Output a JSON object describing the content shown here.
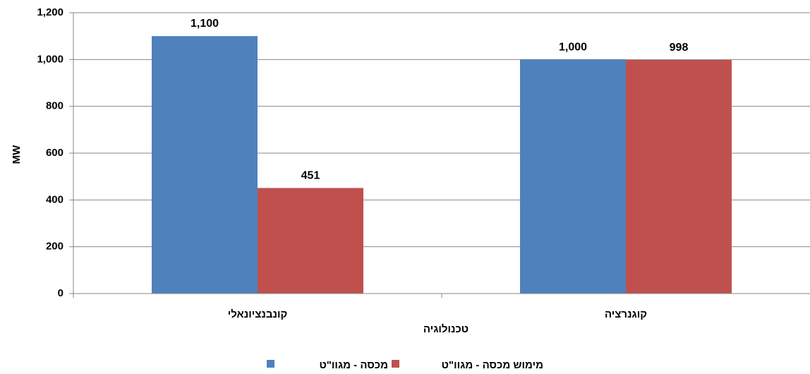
{
  "chart_data": {
    "type": "bar",
    "categories": [
      "קונבנציונאלי",
      "קוגנרציה"
    ],
    "series": [
      {
        "name": "מכסה - מגוו\"ט",
        "color": "#4F81BD",
        "values": [
          1100,
          1000
        ]
      },
      {
        "name": "מימוש מכסה - מגוו\"ט",
        "color": "#C0504D",
        "values": [
          451,
          998
        ]
      }
    ],
    "data_labels": [
      [
        "1,100",
        "1,000"
      ],
      [
        "451",
        "998"
      ]
    ],
    "xlabel": "טכנולוגיה",
    "ylabel": "MW",
    "ylim": [
      0,
      1200
    ],
    "yticks": [
      "0",
      "200",
      "400",
      "600",
      "800",
      "1,000",
      "1,200"
    ],
    "grid": true,
    "legend_position": "bottom"
  }
}
